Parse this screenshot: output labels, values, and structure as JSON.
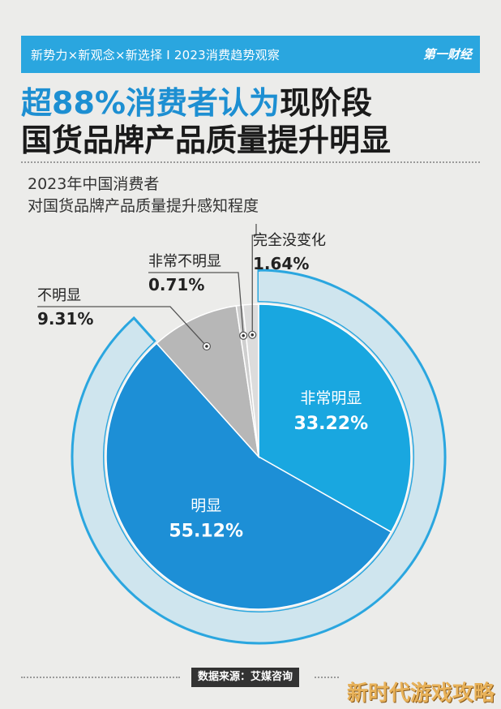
{
  "header": {
    "tagline": "新势力×新观念×新选择 I 2023消费趋势观察",
    "brand": "第一财经"
  },
  "headline": {
    "line1_accent": "超88%消费者认为",
    "line1_rest": "现阶段",
    "line2": "国货品牌产品质量提升明显"
  },
  "subtitle": {
    "line1": "2023年中国消费者",
    "line2": "对国货品牌产品质量提升感知程度"
  },
  "chart_data": {
    "type": "pie",
    "title": "2023年中国消费者对国货品牌产品质量提升感知程度",
    "unit": "%",
    "slices": [
      {
        "label": "非常明显",
        "value": 33.22,
        "value_text": "33.22%",
        "color": "#19a7e0"
      },
      {
        "label": "明显",
        "value": 55.12,
        "value_text": "55.12%",
        "color": "#1d8fd6"
      },
      {
        "label": "不明显",
        "value": 9.31,
        "value_text": "9.31%",
        "color": "#b7b7b7"
      },
      {
        "label": "非常不明显",
        "value": 0.71,
        "value_text": "0.71%",
        "color": "#cfcfcf"
      },
      {
        "label": "完全没变化",
        "value": 1.64,
        "value_text": "1.64%",
        "color": "#dcdcdc"
      }
    ]
  },
  "footer": {
    "source": "数据来源：艾媒咨询",
    "watermark": "新时代游戏攻略"
  }
}
